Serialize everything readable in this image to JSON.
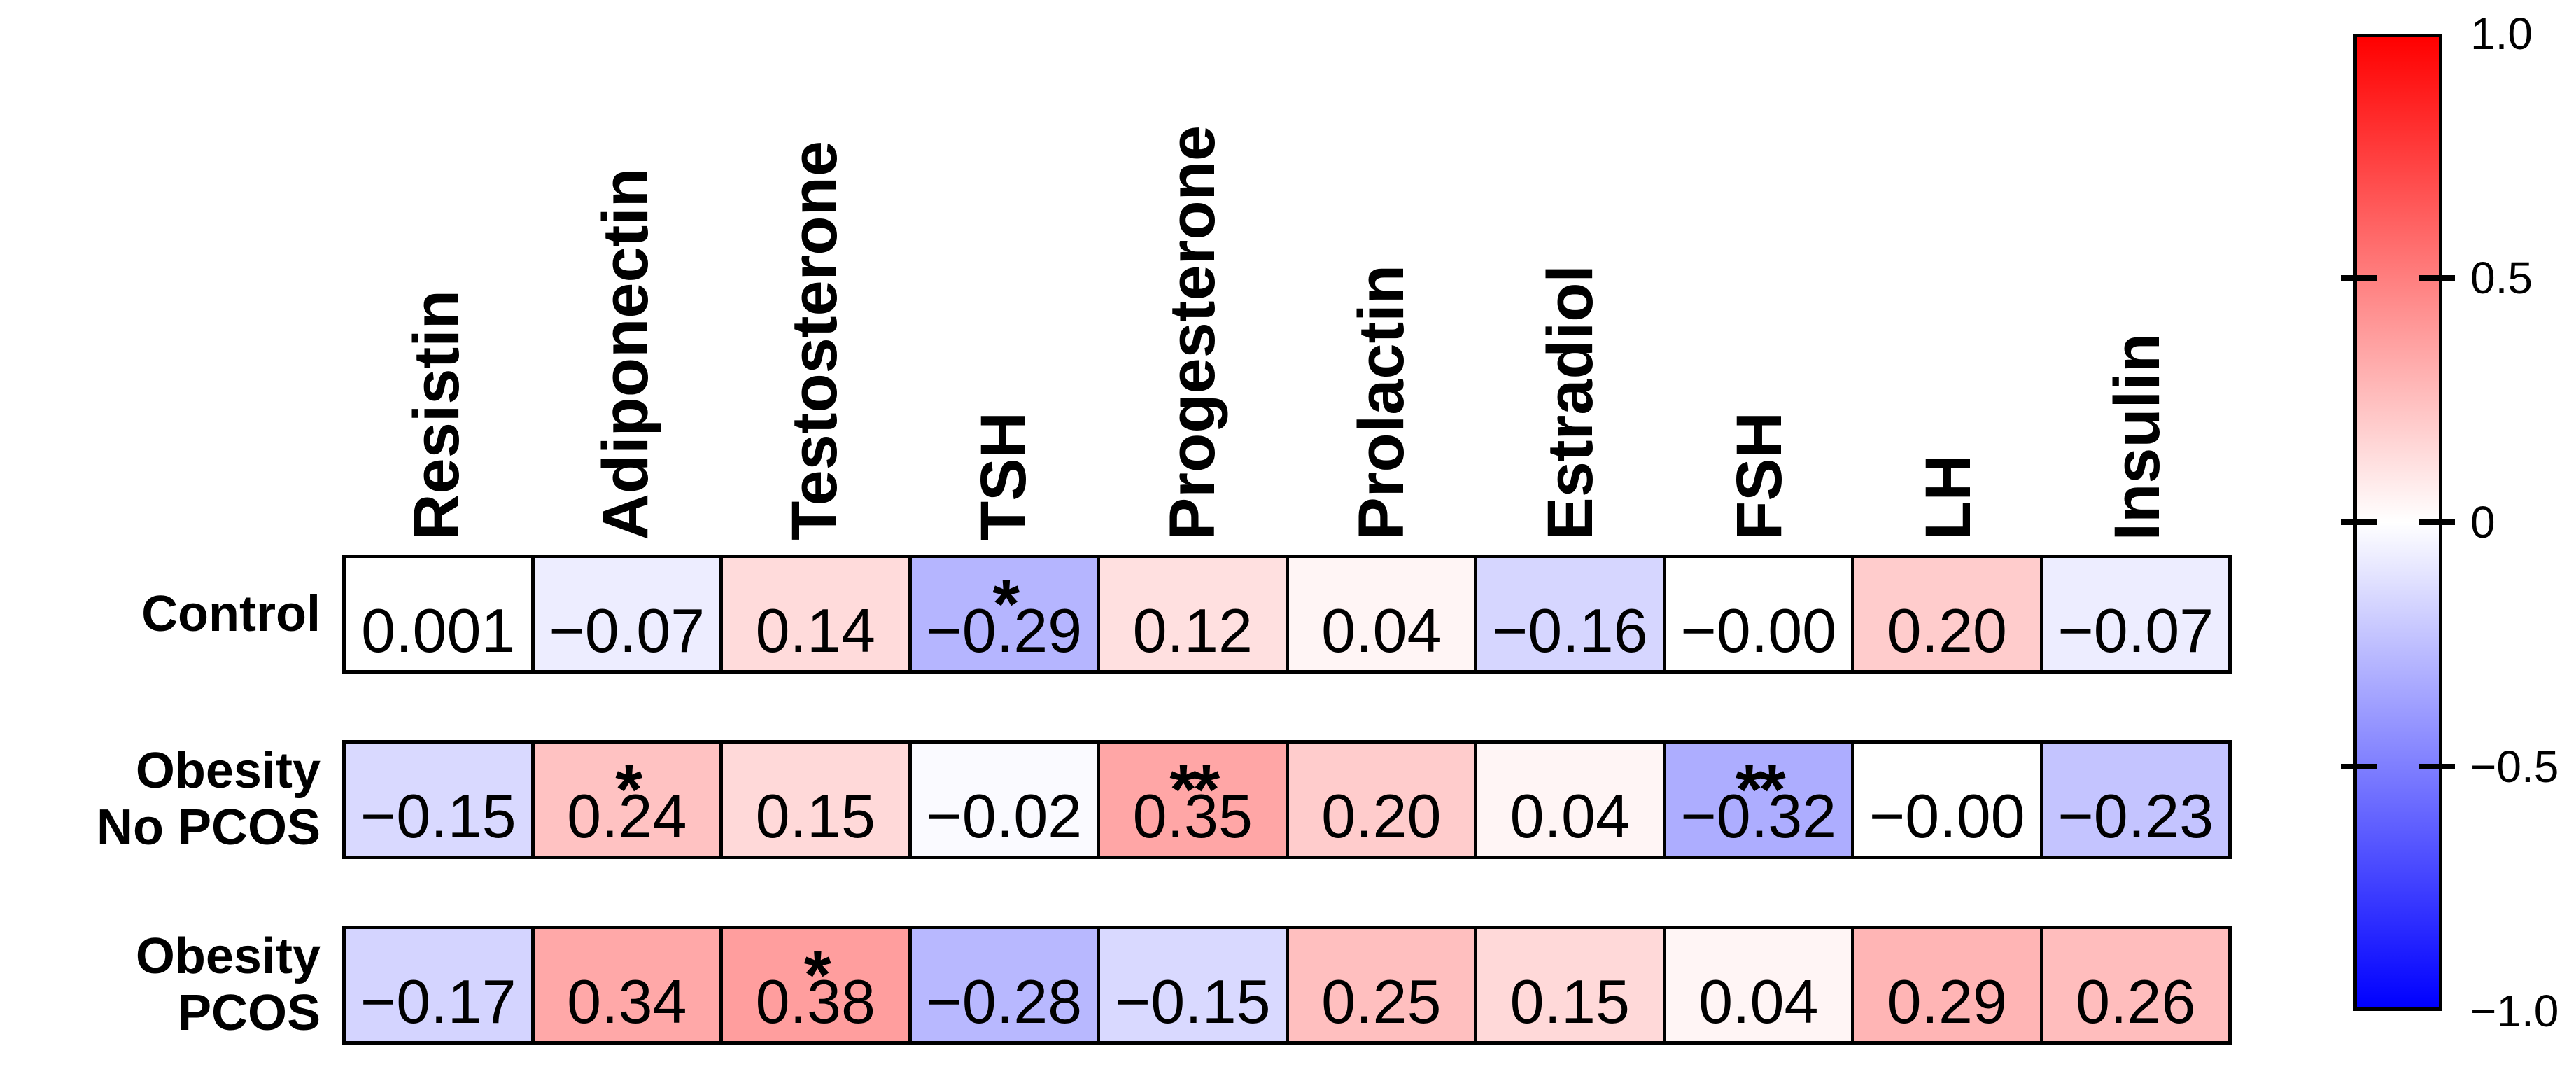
{
  "chart_data": {
    "type": "heatmap",
    "title": "",
    "colormap": "blue-white-red",
    "value_range": [
      -1,
      1
    ],
    "columns": [
      "Resistin",
      "Adiponectin",
      "Testosterone",
      "TSH",
      "Progesterone",
      "Prolactin",
      "Estradiol",
      "FSH",
      "LH",
      "Insulin"
    ],
    "rows": [
      {
        "label_lines": [
          "Control"
        ],
        "values": [
          0.001,
          -0.07,
          0.14,
          -0.29,
          0.12,
          0.04,
          -0.16,
          -0.0,
          0.2,
          -0.07
        ],
        "display": [
          "0.001",
          "−0.07",
          "0.14",
          "−0.29",
          "0.12",
          "0.04",
          "−0.16",
          "−0.00",
          "0.20",
          "−0.07"
        ],
        "significance": [
          "",
          "",
          "",
          "*",
          "",
          "",
          "",
          "",
          "",
          ""
        ]
      },
      {
        "label_lines": [
          "Obesity",
          "No PCOS"
        ],
        "values": [
          -0.15,
          0.24,
          0.15,
          -0.02,
          0.35,
          0.2,
          0.04,
          -0.32,
          -0.0,
          -0.23
        ],
        "display": [
          "−0.15",
          "0.24",
          "0.15",
          "−0.02",
          "0.35",
          "0.20",
          "0.04",
          "−0.32",
          "−0.00",
          "−0.23"
        ],
        "significance": [
          "",
          "*",
          "",
          "",
          "**",
          "",
          "",
          "**",
          "",
          ""
        ]
      },
      {
        "label_lines": [
          "Obesity",
          "PCOS"
        ],
        "values": [
          -0.17,
          0.34,
          0.38,
          -0.28,
          -0.15,
          0.25,
          0.15,
          0.04,
          0.29,
          0.26
        ],
        "display": [
          "−0.17",
          "0.34",
          "0.38",
          "−0.28",
          "−0.15",
          "0.25",
          "0.15",
          "0.04",
          "0.29",
          "0.26"
        ],
        "significance": [
          "",
          "",
          "*",
          "",
          "",
          "",
          "",
          "",
          "",
          ""
        ]
      }
    ],
    "colorbar": {
      "tick_labels": [
        "1.0",
        "0.5",
        "0",
        "−0.5",
        "−1.0"
      ],
      "tick_values": [
        1.0,
        0.5,
        0,
        -0.5,
        -1.0
      ],
      "top_color": "#FF0000",
      "mid_color": "#FFFFFF",
      "bottom_color": "#0000FF"
    },
    "colors": {
      "border": "#000000",
      "text": "#000000",
      "background": "#FFFFFF"
    },
    "legend_position": "right",
    "grid": false
  }
}
